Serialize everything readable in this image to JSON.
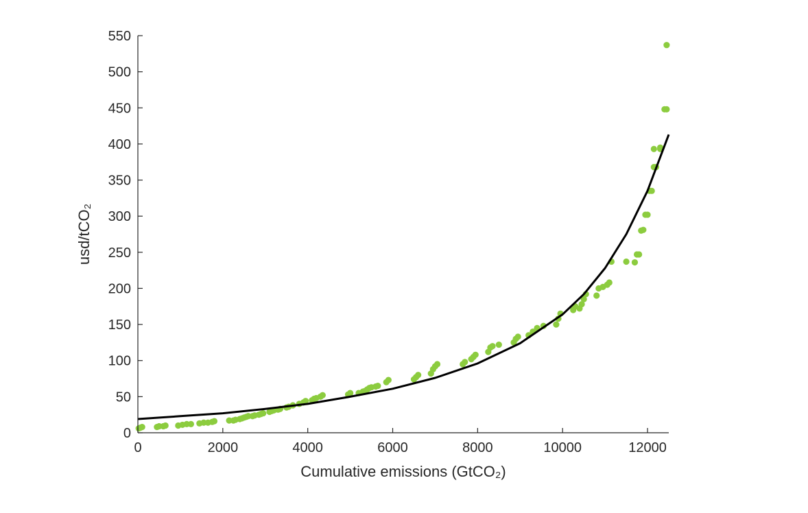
{
  "chart_data": {
    "type": "scatter",
    "xlabel": "Cumulative emissions (GtCO₂)",
    "ylabel": "usd/tCO₂",
    "xlim": [
      0,
      12500
    ],
    "ylim": [
      0,
      550
    ],
    "xticks": [
      0,
      2000,
      4000,
      6000,
      8000,
      10000,
      12000
    ],
    "yticks": [
      0,
      50,
      100,
      150,
      200,
      250,
      300,
      350,
      400,
      450,
      500,
      550
    ],
    "grid": false,
    "legend": "none",
    "colors": {
      "points": "#8ccc3f",
      "fit": "#000000",
      "axes": "#262626"
    },
    "series": [
      {
        "type": "scatter",
        "x": [
          20,
          60,
          100,
          450,
          500,
          600,
          650,
          950,
          1050,
          1150,
          1250,
          1450,
          1550,
          1650,
          1750,
          1800,
          2150,
          2250,
          2300,
          2400,
          2450,
          2500,
          2550,
          2600,
          2700,
          2750,
          2850,
          2900,
          2950,
          3100,
          3150,
          3200,
          3300,
          3350,
          3500,
          3550,
          3650,
          3800,
          3900,
          3950,
          4100,
          4150,
          4200,
          4300,
          4350,
          4950,
          5000,
          5200,
          5300,
          5350,
          5400,
          5450,
          5500,
          5600,
          5650,
          5850,
          5900,
          6500,
          6550,
          6600,
          6900,
          6950,
          7000,
          7050,
          7650,
          7700,
          7850,
          7900,
          7950,
          8250,
          8300,
          8350,
          8500,
          8850,
          8900,
          8950,
          9200,
          9300,
          9400,
          9550,
          9850,
          9900,
          9950,
          10250,
          10300,
          10400,
          10450,
          10500,
          10550,
          10800,
          10850,
          10950,
          11050,
          11100,
          11150,
          11500,
          11700,
          11750,
          11800,
          11850,
          11900,
          11950,
          12000,
          12050,
          12100,
          12150,
          12200,
          12300,
          12400,
          12450
        ],
        "y": [
          6,
          7,
          8,
          8,
          9,
          9,
          10,
          10,
          11,
          12,
          12,
          13,
          14,
          14,
          15,
          16,
          17,
          17,
          18,
          19,
          20,
          21,
          22,
          23,
          23,
          24,
          25,
          26,
          27,
          29,
          30,
          31,
          32,
          33,
          35,
          36,
          38,
          40,
          42,
          44,
          45,
          47,
          48,
          50,
          52,
          53,
          55,
          55,
          57,
          58,
          60,
          62,
          63,
          64,
          65,
          70,
          73,
          74,
          77,
          80,
          82,
          88,
          92,
          95,
          95,
          98,
          102,
          105,
          108,
          112,
          118,
          120,
          122,
          125,
          130,
          133,
          135,
          140,
          145,
          148,
          150,
          158,
          165,
          170,
          175,
          172,
          178,
          185,
          192,
          190,
          200,
          202,
          205,
          208,
          237,
          237,
          236,
          247,
          247,
          280,
          281,
          302,
          302,
          335,
          335,
          368,
          368,
          395,
          448,
          448
        ],
        "extra_points": [
          [
            12300,
            393
          ],
          [
            12150,
            393
          ],
          [
            12450,
            537
          ]
        ]
      },
      {
        "type": "line",
        "x": [
          0,
          1000,
          2000,
          3000,
          4000,
          5000,
          6000,
          7000,
          8000,
          9000,
          10000,
          10500,
          11000,
          11500,
          12000,
          12500
        ],
        "y": [
          19,
          23,
          27,
          33,
          40,
          50,
          61,
          76,
          96,
          124,
          164,
          192,
          228,
          275,
          335,
          413
        ]
      }
    ]
  }
}
